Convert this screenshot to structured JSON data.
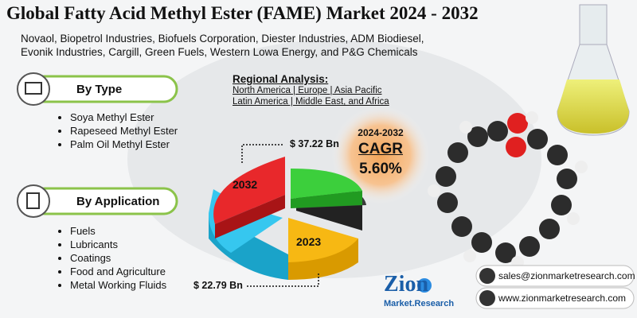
{
  "header": {
    "title": "Global Fatty Acid Methyl Ester (FAME) Market 2024 - 2032",
    "companies": "Novaol, Biopetrol Industries, Biofuels Corporation, Diester Industries, ADM Biodiesel, Evonik Industries, Cargill, Green Fuels, Western Lowa Energy, and P&G Chemicals"
  },
  "sections": [
    {
      "title": "By Type",
      "items": [
        "Soya Methyl Ester",
        "Rapeseed Methyl Ester",
        "Palm Oil Methyl Ester"
      ]
    },
    {
      "title": "By Application",
      "items": [
        "Fuels",
        "Lubricants",
        "Coatings",
        "Food and Agriculture",
        "Metal Working Fluids"
      ]
    }
  ],
  "regional": {
    "title": "Regional Analysis:",
    "lines": [
      "North America | Europe | Asia Pacific",
      "Latin America | Middle East, and Africa"
    ]
  },
  "cagr": {
    "period": "2024-2032",
    "label": "CAGR",
    "value": "5.60%"
  },
  "market": {
    "year_end": "2032",
    "value_end": "$ 37.22 Bn",
    "year_start": "2023",
    "value_start": "$ 22.79 Bn"
  },
  "logo": {
    "name": "Zion",
    "sub": "Market.Research"
  },
  "contact": {
    "email": "sales@zionmarketresearch.com",
    "website": "www.zionmarketresearch.com"
  }
}
